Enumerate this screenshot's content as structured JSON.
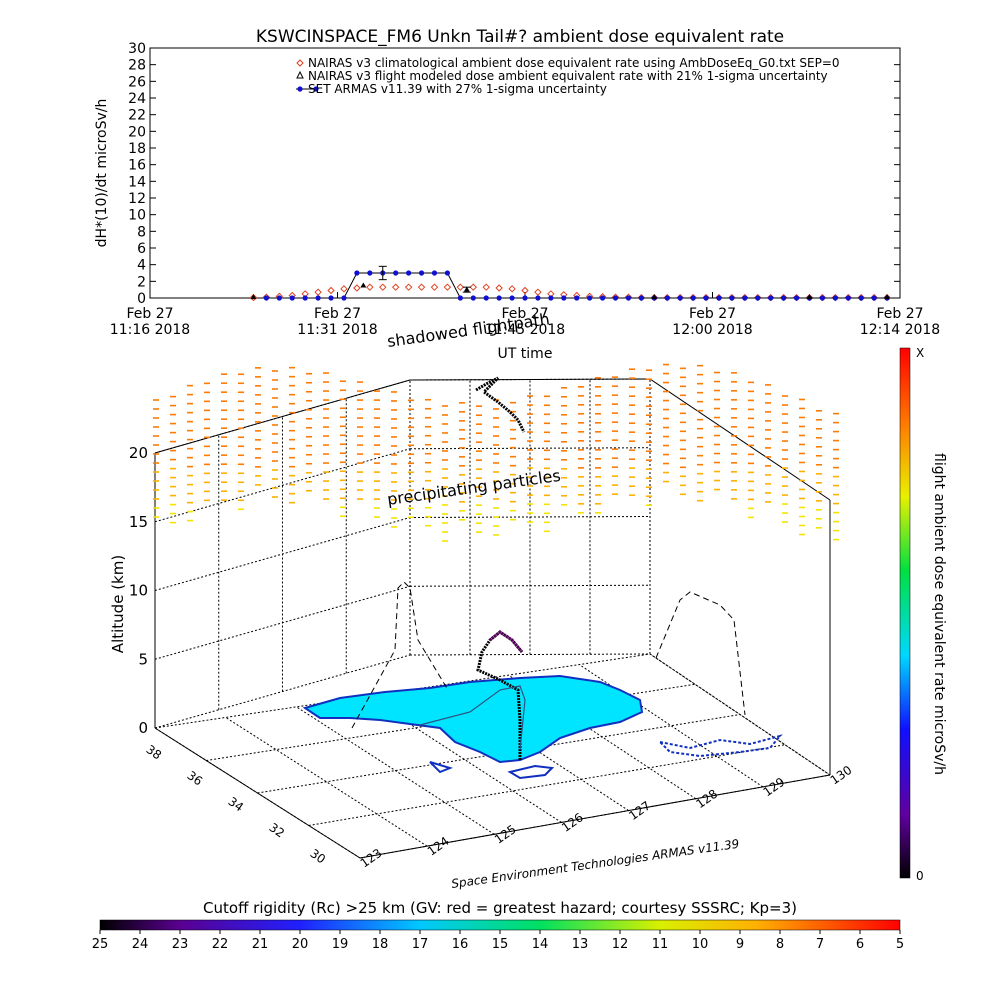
{
  "title": "KSWCINSPACE_FM6 Unkn Tail#? ambient dose equivalent rate",
  "colors": {
    "climatological": "#e04020",
    "modeled": "#000000",
    "armas": "#1010d0",
    "land": "#00e5ff",
    "coast": "#1030c0"
  },
  "chart_data": [
    {
      "type": "line",
      "ylabel": "dH*(10)/dt microSv/h",
      "xlabel": "UT time",
      "ylim": [
        0,
        30
      ],
      "yticks": [
        "0",
        "2",
        "4",
        "6",
        "8",
        "10",
        "12",
        "14",
        "16",
        "18",
        "20",
        "22",
        "24",
        "26",
        "28",
        "30"
      ],
      "xticks": [
        {
          "line1": "Feb 27",
          "line2": "11:16 2018"
        },
        {
          "line1": "Feb 27",
          "line2": "11:31 2018"
        },
        {
          "line1": "Feb 27",
          "line2": "11:45 2018"
        },
        {
          "line1": "Feb 27",
          "line2": "12:00 2018"
        },
        {
          "line1": "Feb 27",
          "line2": "12:14 2018"
        }
      ],
      "xlim_minutes": [
        0,
        58
      ],
      "legend": [
        "NAIRAS v3 climatological ambient dose equivalent rate using AmbDoseEq_G0.txt SEP=0",
        "NAIRAS v3 flight modeled dose ambient equivalent rate with 21% 1-sigma uncertainty",
        "SET ARMAS v11.39 with 27% 1-sigma uncertainty"
      ],
      "series": [
        {
          "name": "NAIRAS v3 climatological ambient dose equivalent rate using AmbDoseEq_G0.txt SEP=0",
          "marker": "diamond",
          "x": [
            8,
            9,
            10,
            11,
            12,
            13,
            14,
            15,
            16,
            17,
            18,
            19,
            20,
            21,
            22,
            23,
            24,
            25,
            26,
            27,
            28,
            29,
            30,
            31,
            32,
            33,
            34,
            35,
            36,
            37,
            38,
            39,
            40,
            41,
            42,
            43,
            44,
            45,
            46,
            47,
            48,
            49,
            50,
            51,
            52,
            53,
            54,
            55,
            56,
            57
          ],
          "y": [
            0.05,
            0.1,
            0.2,
            0.3,
            0.5,
            0.7,
            0.9,
            1.1,
            1.2,
            1.3,
            1.3,
            1.3,
            1.3,
            1.3,
            1.3,
            1.3,
            1.3,
            1.3,
            1.3,
            1.2,
            1.1,
            0.9,
            0.7,
            0.5,
            0.4,
            0.3,
            0.2,
            0.15,
            0.1,
            0.1,
            0.05,
            0.05,
            0.05,
            0.05,
            0.05,
            0.05,
            0.05,
            0.05,
            0.05,
            0.05,
            0.05,
            0.05,
            0.05,
            0.05,
            0.05,
            0.05,
            0.05,
            0.05,
            0.05,
            0.05
          ]
        },
        {
          "name": "NAIRAS v3 flight modeled dose ambient equivalent rate with 21% 1-sigma uncertainty",
          "marker": "triangle",
          "x": [
            8,
            16.5,
            24.5,
            39,
            51,
            57
          ],
          "y": [
            0.1,
            1.5,
            1.0,
            0.1,
            0.1,
            0.1
          ]
        },
        {
          "name": "SET ARMAS v11.39 with 27% 1-sigma uncertainty",
          "marker": "dot",
          "x": [
            9,
            10,
            11,
            12,
            13,
            14,
            15,
            16,
            17,
            18,
            19,
            20,
            21,
            22,
            23,
            24,
            25,
            26,
            27,
            28,
            29,
            30,
            31,
            32,
            33,
            34,
            35,
            36,
            37,
            38,
            39,
            40,
            41,
            42,
            43,
            44,
            45,
            46,
            47,
            48,
            49,
            50,
            51,
            52,
            53,
            54,
            55,
            56,
            57
          ],
          "y": [
            0,
            0,
            0,
            0,
            0,
            0,
            0,
            3,
            3,
            3,
            3,
            3,
            3,
            3,
            3,
            0,
            0,
            0,
            0,
            0,
            0,
            0,
            0,
            0,
            0,
            0,
            0,
            0,
            0,
            0,
            0,
            0,
            0,
            0,
            0,
            0,
            0,
            0,
            0,
            0,
            0,
            0,
            0,
            0,
            0,
            0,
            0,
            0,
            0
          ],
          "errorbars": [
            {
              "x": 18,
              "y": 3,
              "err": 0.8
            },
            {
              "x": 24.5,
              "y": 1.0,
              "err": 0.3
            }
          ]
        }
      ]
    },
    {
      "type": "3d-map",
      "zlabel": "Altitude (km)",
      "zticks": [
        "0",
        "5",
        "10",
        "15",
        "20"
      ],
      "lat_ticks": [
        "30",
        "32",
        "34",
        "36",
        "38"
      ],
      "lon_ticks": [
        "123",
        "124",
        "125",
        "126",
        "127",
        "128",
        "129",
        "130"
      ],
      "annotations": [
        "shadowed flightpath",
        "precipitating particles"
      ],
      "credit": "Space Environment Technologies ARMAS v11.39",
      "colorbar_label": "flight ambient dose equivalent rate microSv/h",
      "colorbar_top": "X",
      "colorbar_bottom": "0"
    },
    {
      "type": "colorbar",
      "title": "Cutoff rigidity (Rc) >25 km (GV: red = greatest hazard; courtesy SSSRC; Kp=3)",
      "ticks": [
        "25",
        "24",
        "23",
        "22",
        "21",
        "20",
        "19",
        "18",
        "17",
        "16",
        "15",
        "14",
        "13",
        "12",
        "11",
        "10",
        "9",
        "8",
        "7",
        "6",
        "5"
      ]
    }
  ]
}
